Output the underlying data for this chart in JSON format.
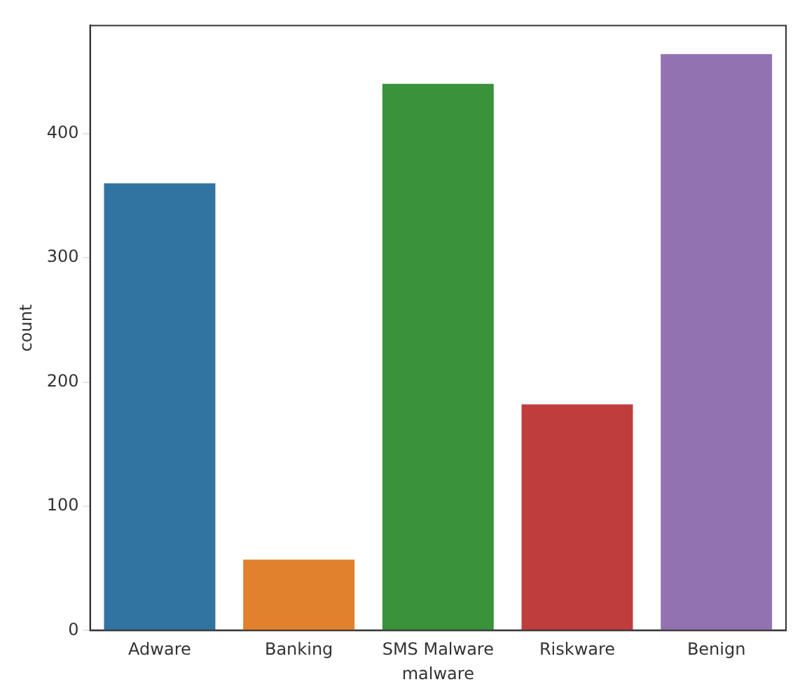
{
  "chart_data": {
    "type": "bar",
    "xlabel": "malware",
    "ylabel": "count",
    "categories": [
      "Adware",
      "Banking",
      "SMS Malware",
      "Riskware",
      "Benign"
    ],
    "values": [
      360,
      57,
      440,
      182,
      464
    ],
    "colors": [
      "#3274a1",
      "#e1812c",
      "#3a923a",
      "#c03d3e",
      "#9372b2"
    ],
    "ylim": [
      0,
      487
    ],
    "yticks": [
      0,
      100,
      200,
      300,
      400
    ],
    "grid": false,
    "legend": false
  }
}
